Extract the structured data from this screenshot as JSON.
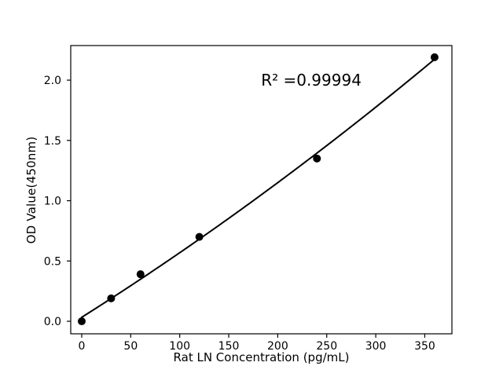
{
  "chart_data": {
    "type": "scatter",
    "title": "",
    "xlabel": "Rat LN Concentration (pg/mL)",
    "ylabel": "OD Value(450nm)",
    "annotation": {
      "text": "R² =0.99994",
      "x": 183,
      "y": 2.0
    },
    "r_squared": 0.99994,
    "points": {
      "x": [
        0,
        30,
        60,
        120,
        240,
        360
      ],
      "y": [
        0.0,
        0.19,
        0.39,
        0.7,
        1.35,
        2.19
      ]
    },
    "fit": {
      "type": "quadratic",
      "x_range": [
        0,
        360
      ]
    },
    "axes": {
      "xlim": [
        -11.2,
        377.7
      ],
      "ylim": [
        -0.104,
        2.287
      ],
      "x_tick_values": [
        0,
        50,
        100,
        150,
        200,
        250,
        300,
        350
      ],
      "x_tick_labels": [
        "0",
        "50",
        "100",
        "150",
        "200",
        "250",
        "300",
        "350"
      ],
      "y_tick_values": [
        0.0,
        0.5,
        1.0,
        1.5,
        2.0
      ],
      "y_tick_labels": [
        "0.0",
        "0.5",
        "1.0",
        "1.5",
        "2.0"
      ]
    },
    "grid": false,
    "legend": null,
    "colors": {
      "marker": "#000000",
      "line": "#000000",
      "text": "#000000",
      "background": "#ffffff"
    }
  }
}
